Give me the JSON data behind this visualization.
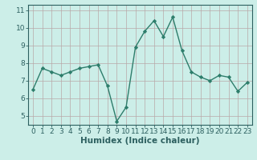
{
  "x": [
    0,
    1,
    2,
    3,
    4,
    5,
    6,
    7,
    8,
    9,
    10,
    11,
    12,
    13,
    14,
    15,
    16,
    17,
    18,
    19,
    20,
    21,
    22,
    23
  ],
  "y": [
    6.5,
    7.7,
    7.5,
    7.3,
    7.5,
    7.7,
    7.8,
    7.9,
    6.7,
    4.7,
    5.5,
    8.9,
    9.8,
    10.4,
    9.5,
    10.6,
    8.7,
    7.5,
    7.2,
    7.0,
    7.3,
    7.2,
    6.4,
    6.9
  ],
  "xlabel": "Humidex (Indice chaleur)",
  "xlim": [
    -0.5,
    23.5
  ],
  "ylim": [
    4.5,
    11.3
  ],
  "yticks": [
    5,
    6,
    7,
    8,
    9,
    10,
    11
  ],
  "xticks": [
    0,
    1,
    2,
    3,
    4,
    5,
    6,
    7,
    8,
    9,
    10,
    11,
    12,
    13,
    14,
    15,
    16,
    17,
    18,
    19,
    20,
    21,
    22,
    23
  ],
  "line_color": "#2d7d6b",
  "marker": "D",
  "marker_size": 2.2,
  "bg_color": "#cceee8",
  "grid_color": "#b8a8a8",
  "axis_color": "#2d6060",
  "xlabel_fontsize": 7.5,
  "tick_fontsize": 6.5,
  "linewidth": 1.0
}
